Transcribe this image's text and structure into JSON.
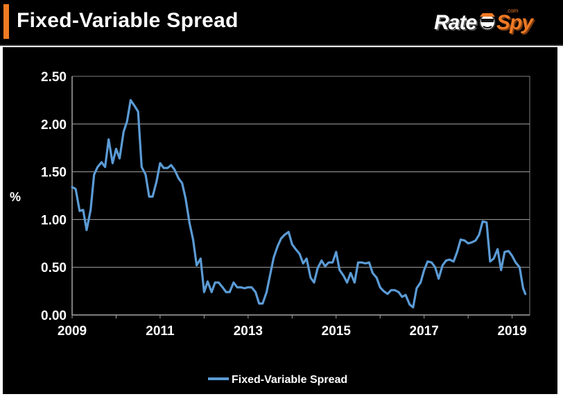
{
  "header": {
    "title": "Fixed-Variable Spread",
    "logo": {
      "part1": "Rate",
      "part2": "Spy",
      "suffix": ".com"
    }
  },
  "colors": {
    "background": "#000000",
    "accent": "#f07a24",
    "line": "#5b9bd5",
    "text": "#ffffff",
    "grid": "#a6a6a6"
  },
  "chart_data": {
    "type": "line",
    "title": "",
    "xlabel": "",
    "ylabel": "%",
    "xlim": [
      2009.0,
      2019.4
    ],
    "ylim": [
      0,
      2.5
    ],
    "yticks": [
      0.0,
      0.5,
      1.0,
      1.5,
      2.0,
      2.5
    ],
    "ytick_labels": [
      "0.00",
      "0.50",
      "1.00",
      "1.50",
      "2.00",
      "2.50"
    ],
    "xticks": [
      2009,
      2011,
      2013,
      2015,
      2017,
      2019
    ],
    "xtick_labels": [
      "2009",
      "2011",
      "2013",
      "2015",
      "2017",
      "2019"
    ],
    "grid": true,
    "legend": "bottom-center",
    "series": [
      {
        "name": "Fixed-Variable Spread",
        "x": [
          2009.0,
          2009.08,
          2009.17,
          2009.25,
          2009.33,
          2009.42,
          2009.5,
          2009.58,
          2009.67,
          2009.75,
          2009.83,
          2009.92,
          2010.0,
          2010.08,
          2010.17,
          2010.25,
          2010.33,
          2010.42,
          2010.5,
          2010.58,
          2010.67,
          2010.75,
          2010.83,
          2010.92,
          2011.0,
          2011.08,
          2011.17,
          2011.25,
          2011.33,
          2011.42,
          2011.5,
          2011.58,
          2011.67,
          2011.75,
          2011.83,
          2011.92,
          2012.0,
          2012.08,
          2012.17,
          2012.25,
          2012.33,
          2012.42,
          2012.5,
          2012.58,
          2012.67,
          2012.75,
          2012.83,
          2012.92,
          2013.0,
          2013.08,
          2013.17,
          2013.25,
          2013.33,
          2013.42,
          2013.5,
          2013.58,
          2013.67,
          2013.75,
          2013.83,
          2013.92,
          2014.0,
          2014.08,
          2014.17,
          2014.25,
          2014.33,
          2014.42,
          2014.5,
          2014.58,
          2014.67,
          2014.75,
          2014.83,
          2014.92,
          2015.0,
          2015.08,
          2015.17,
          2015.25,
          2015.33,
          2015.42,
          2015.5,
          2015.58,
          2015.67,
          2015.75,
          2015.83,
          2015.92,
          2016.0,
          2016.08,
          2016.17,
          2016.25,
          2016.33,
          2016.42,
          2016.5,
          2016.58,
          2016.67,
          2016.75,
          2016.83,
          2016.92,
          2017.0,
          2017.08,
          2017.17,
          2017.25,
          2017.33,
          2017.42,
          2017.5,
          2017.58,
          2017.67,
          2017.75,
          2017.83,
          2017.92,
          2018.0,
          2018.08,
          2018.17,
          2018.25,
          2018.33,
          2018.42,
          2018.5,
          2018.58,
          2018.67,
          2018.75,
          2018.83,
          2018.92,
          2019.0,
          2019.08,
          2019.17,
          2019.25,
          2019.3
        ],
        "values": [
          1.34,
          1.32,
          1.09,
          1.1,
          0.89,
          1.1,
          1.47,
          1.55,
          1.6,
          1.55,
          1.84,
          1.59,
          1.74,
          1.64,
          1.92,
          2.03,
          2.25,
          2.19,
          2.13,
          1.55,
          1.47,
          1.24,
          1.24,
          1.4,
          1.59,
          1.54,
          1.54,
          1.57,
          1.52,
          1.43,
          1.38,
          1.22,
          0.96,
          0.79,
          0.52,
          0.59,
          0.24,
          0.35,
          0.24,
          0.34,
          0.34,
          0.29,
          0.24,
          0.24,
          0.34,
          0.29,
          0.29,
          0.28,
          0.29,
          0.29,
          0.24,
          0.12,
          0.12,
          0.24,
          0.42,
          0.6,
          0.72,
          0.8,
          0.84,
          0.87,
          0.74,
          0.69,
          0.64,
          0.54,
          0.59,
          0.39,
          0.34,
          0.49,
          0.57,
          0.51,
          0.55,
          0.55,
          0.66,
          0.47,
          0.41,
          0.34,
          0.44,
          0.34,
          0.55,
          0.55,
          0.54,
          0.55,
          0.44,
          0.39,
          0.29,
          0.25,
          0.22,
          0.26,
          0.26,
          0.24,
          0.19,
          0.21,
          0.11,
          0.08,
          0.28,
          0.34,
          0.47,
          0.56,
          0.55,
          0.5,
          0.38,
          0.52,
          0.57,
          0.58,
          0.56,
          0.66,
          0.79,
          0.78,
          0.75,
          0.76,
          0.78,
          0.84,
          0.98,
          0.97,
          0.56,
          0.59,
          0.69,
          0.47,
          0.66,
          0.67,
          0.62,
          0.55,
          0.5,
          0.28,
          0.22
        ]
      }
    ]
  }
}
